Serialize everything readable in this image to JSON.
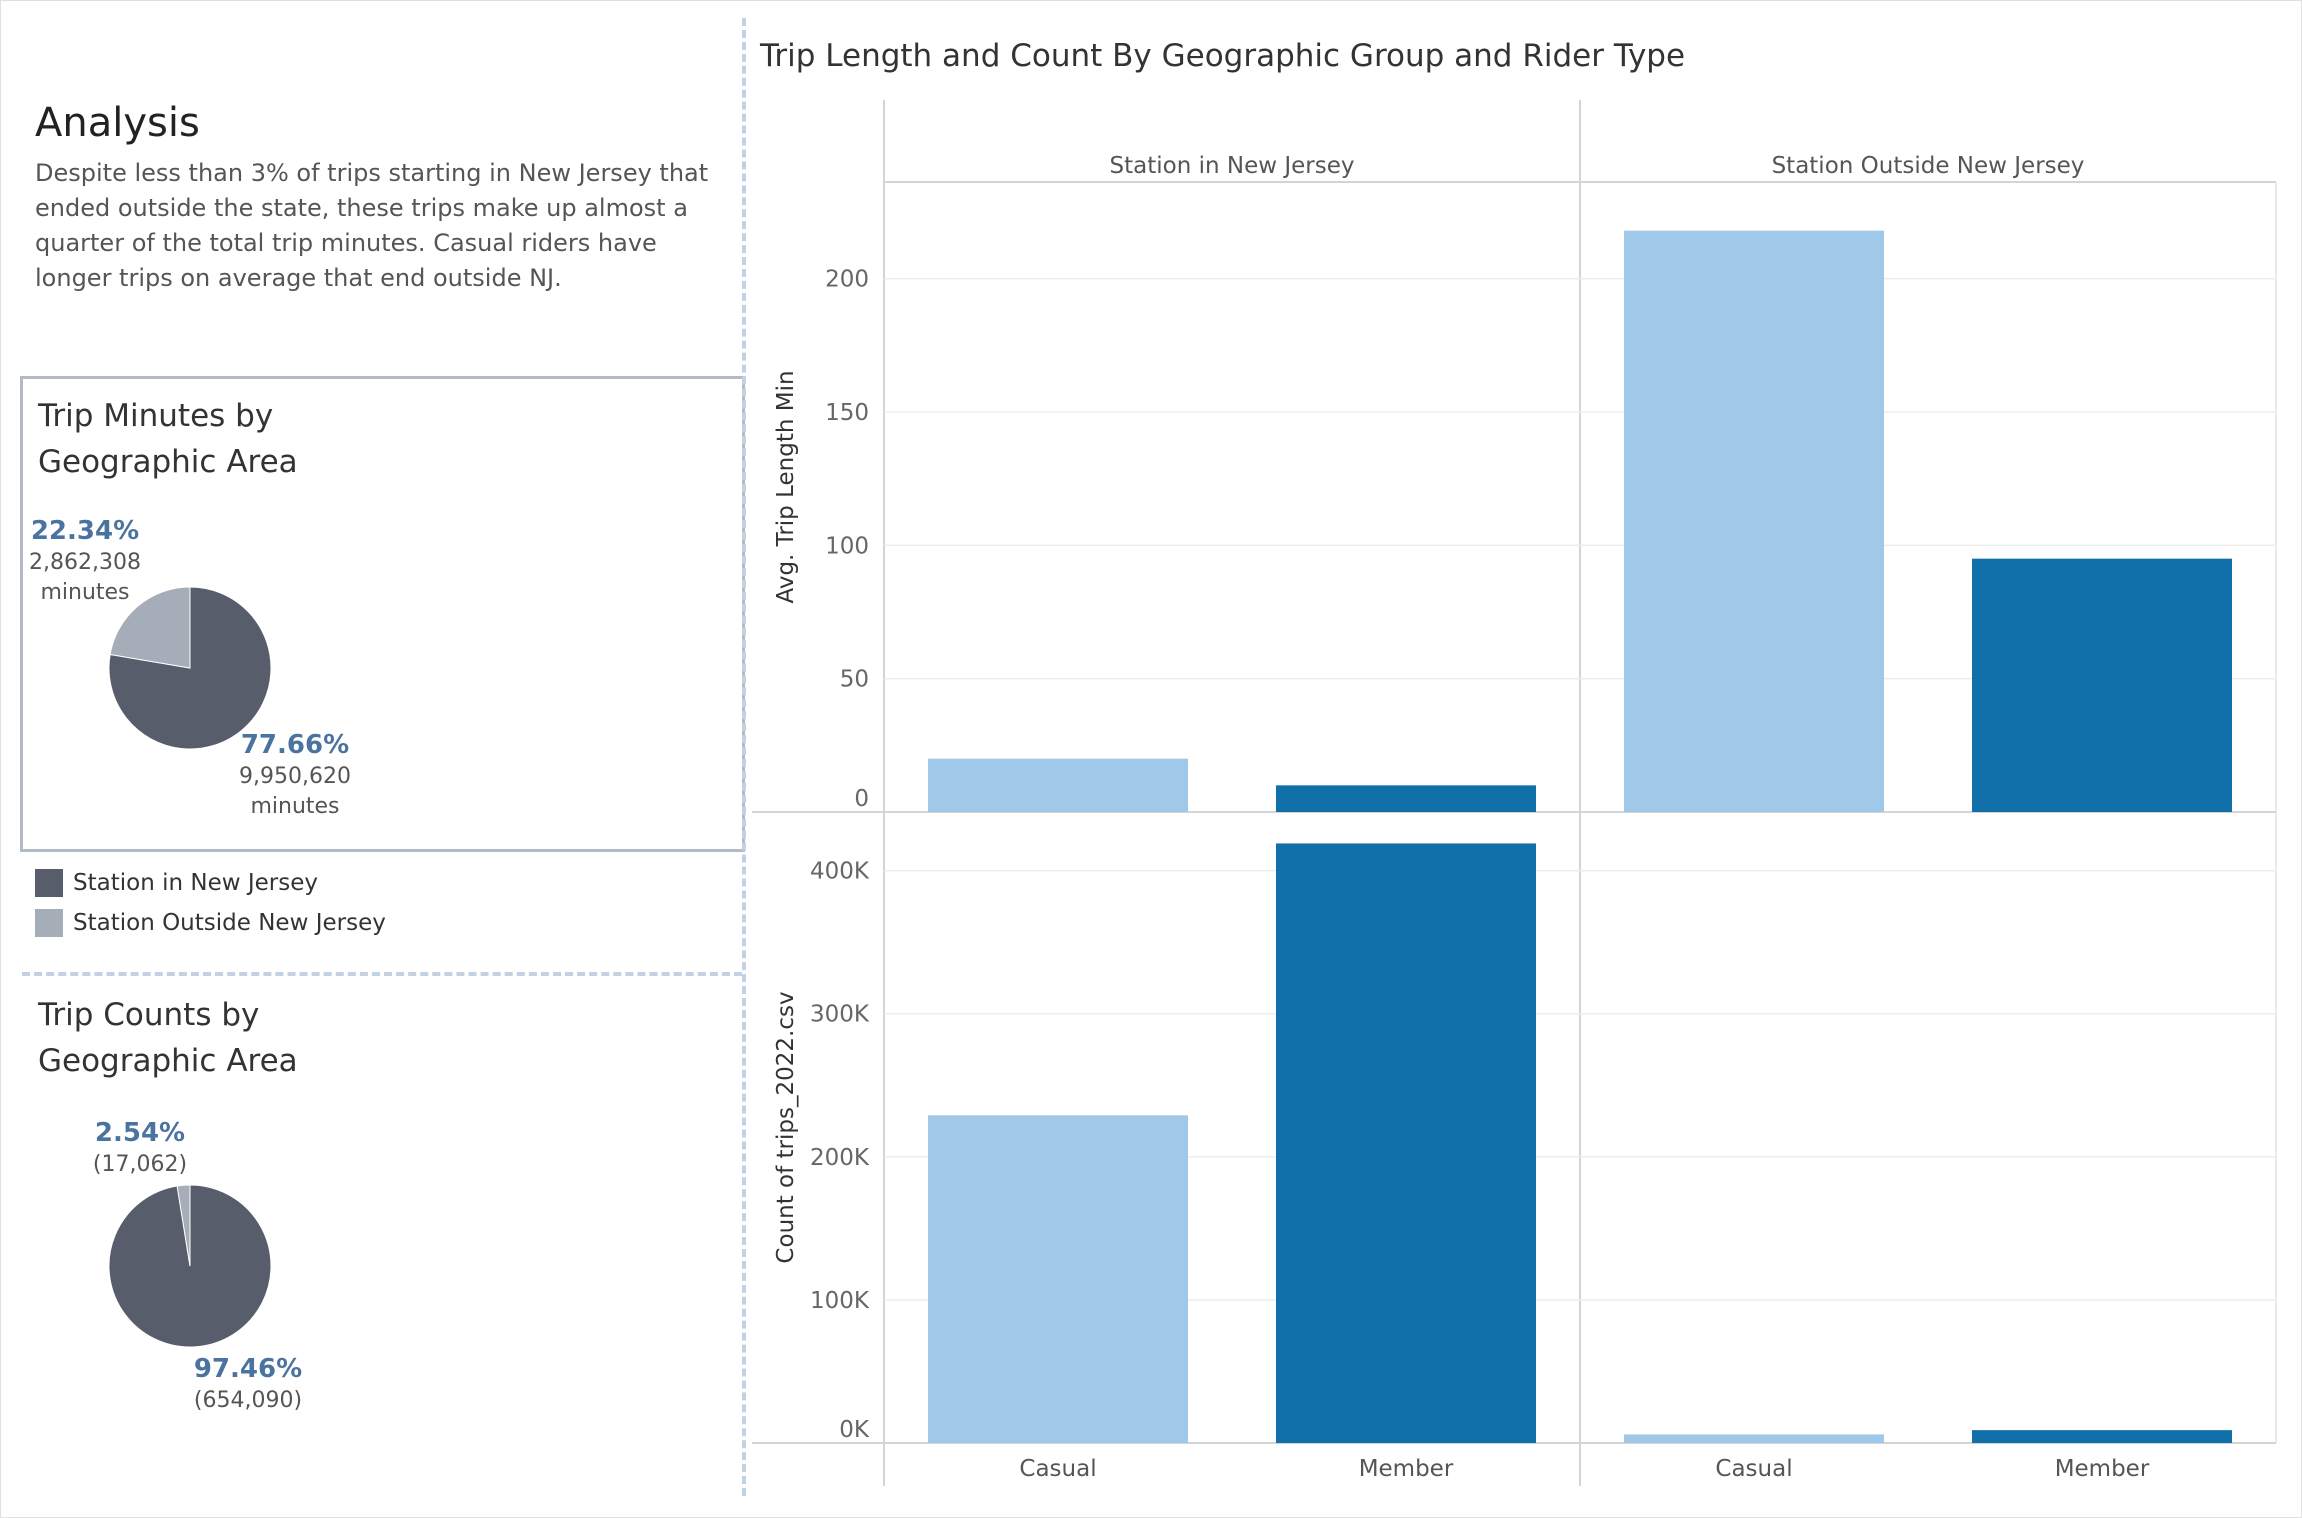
{
  "analysis": {
    "title": "Analysis",
    "text": "Despite less than 3% of trips starting in New Jersey that ended outside the state, these trips make up almost a quarter of the total trip minutes.  Casual riders have longer trips on average that end outside NJ."
  },
  "colors": {
    "nj": "#575d6b",
    "outside": "#a5adb9",
    "casual": "#a0c8e8",
    "member": "#1170aa",
    "label": "#4a73a0"
  },
  "trip_minutes": {
    "title_line1": "Trip Minutes by",
    "title_line2": "Geographic Area",
    "outside": {
      "pct": "22.34%",
      "value": "2,862,308",
      "unit": "minutes"
    },
    "nj": {
      "pct": "77.66%",
      "value": "9,950,620",
      "unit": "minutes"
    }
  },
  "trip_counts": {
    "title_line1": "Trip Counts by",
    "title_line2": "Geographic Area",
    "outside": {
      "pct": "2.54%",
      "value": "(17,062)"
    },
    "nj": {
      "pct": "97.46%",
      "value": "(654,090)"
    }
  },
  "legend": {
    "items": [
      {
        "label": "Station in New Jersey"
      },
      {
        "label": "Station Outside New Jersey"
      }
    ]
  },
  "chart_data": [
    {
      "type": "pie",
      "title": "Trip Minutes by Geographic Area",
      "categories": [
        "Station in New Jersey",
        "Station Outside New Jersey"
      ],
      "values": [
        9950620,
        2862308
      ],
      "percentages": [
        77.66,
        22.34
      ]
    },
    {
      "type": "pie",
      "title": "Trip Counts by Geographic Area",
      "categories": [
        "Station in New Jersey",
        "Station Outside New Jersey"
      ],
      "values": [
        654090,
        17062
      ],
      "percentages": [
        97.46,
        2.54
      ]
    },
    {
      "type": "bar",
      "title": "Trip Length and Count By Geographic Group and Rider Type",
      "columns": [
        "Station in New Jersey",
        "Station Outside New Jersey"
      ],
      "categories": [
        "Casual",
        "Member"
      ],
      "rows": [
        {
          "ylabel": "Avg. Trip Length Min",
          "ylim": [
            0,
            225
          ],
          "ticks": [
            0,
            50,
            100,
            150,
            200
          ],
          "tick_labels": [
            "0",
            "50",
            "100",
            "150",
            "200"
          ],
          "series": [
            {
              "name": "Station in New Jersey",
              "values": [
                20,
                10
              ]
            },
            {
              "name": "Station Outside New Jersey",
              "values": [
                218,
                95
              ]
            }
          ]
        },
        {
          "ylabel": "Count of trips_2022.csv",
          "ylim": [
            0,
            420000
          ],
          "ticks": [
            0,
            100000,
            200000,
            300000,
            400000
          ],
          "tick_labels": [
            "0K",
            "100K",
            "200K",
            "300K",
            "400K"
          ],
          "series": [
            {
              "name": "Station in New Jersey",
              "values": [
                229000,
                419000
              ]
            },
            {
              "name": "Station Outside New Jersey",
              "values": [
                6000,
                9000
              ]
            }
          ]
        }
      ]
    }
  ]
}
